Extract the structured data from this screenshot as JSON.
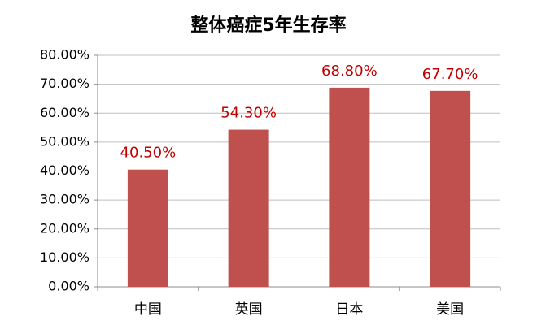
{
  "chart_data": {
    "type": "bar",
    "title": "整体癌症5年生存率",
    "categories": [
      "中国",
      "英国",
      "日本",
      "美国"
    ],
    "values": [
      40.5,
      54.3,
      68.8,
      67.7
    ],
    "value_labels": [
      "40.50%",
      "54.30%",
      "68.80%",
      "67.70%"
    ],
    "color": "#c0504d",
    "label_color": "#c00000",
    "ylim": [
      0,
      80
    ],
    "yticks": [
      {
        "value": 0,
        "label": "0.00%"
      },
      {
        "value": 10,
        "label": "10.00%"
      },
      {
        "value": 20,
        "label": "20.00%"
      },
      {
        "value": 30,
        "label": "30.00%"
      },
      {
        "value": 40,
        "label": "40.00%"
      },
      {
        "value": 50,
        "label": "50.00%"
      },
      {
        "value": 60,
        "label": "60.00%"
      },
      {
        "value": 70,
        "label": "70.00%"
      },
      {
        "value": 80,
        "label": "80.00%"
      }
    ],
    "grid": true
  }
}
